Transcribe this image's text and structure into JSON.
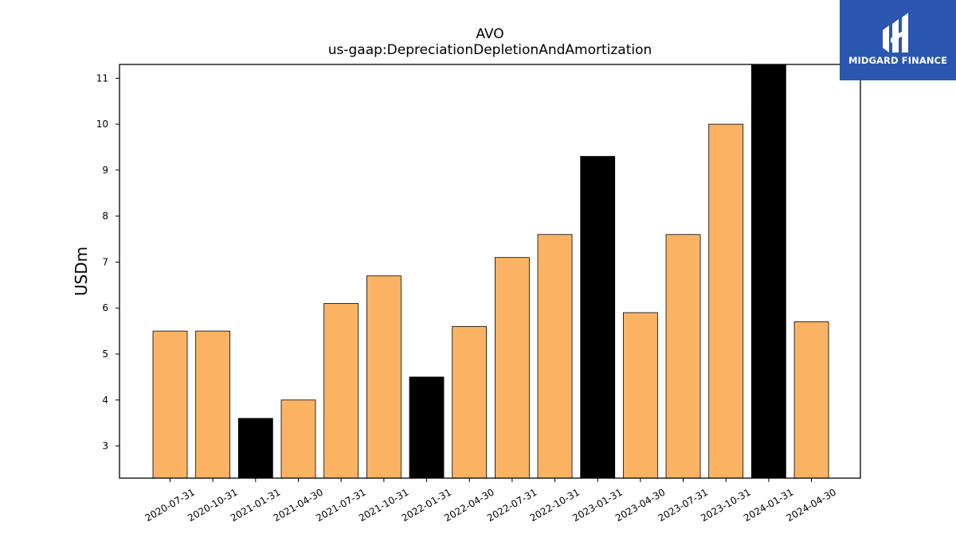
{
  "chart_data": {
    "type": "bar",
    "title": "AVO",
    "subtitle": "us-gaap:DepreciationDepletionAndAmortization",
    "xlabel": "",
    "ylabel": "USDm",
    "ylim": [
      2.3,
      11.3
    ],
    "yticks": [
      3,
      4,
      5,
      6,
      7,
      8,
      9,
      10,
      11
    ],
    "grid": false,
    "categories": [
      "2020-07-31",
      "2020-10-31",
      "2021-01-31",
      "2021-04-30",
      "2021-07-31",
      "2021-10-31",
      "2022-01-31",
      "2022-04-30",
      "2022-07-31",
      "2022-10-31",
      "2023-01-31",
      "2023-04-30",
      "2023-07-31",
      "2023-10-31",
      "2024-01-31",
      "2024-04-30"
    ],
    "values": [
      5.5,
      5.5,
      3.6,
      4.0,
      6.1,
      6.7,
      4.5,
      5.6,
      7.1,
      7.6,
      9.3,
      5.9,
      7.6,
      10.0,
      11.3,
      5.7
    ],
    "bar_colors": [
      "#fbb363",
      "#fbb363",
      "#000000",
      "#fbb363",
      "#fbb363",
      "#fbb363",
      "#000000",
      "#fbb363",
      "#fbb363",
      "#fbb363",
      "#000000",
      "#fbb363",
      "#fbb363",
      "#fbb363",
      "#000000",
      "#fbb363"
    ]
  },
  "logo": {
    "text": "MIDGARD FINANCE",
    "background": "#2a56b0"
  }
}
